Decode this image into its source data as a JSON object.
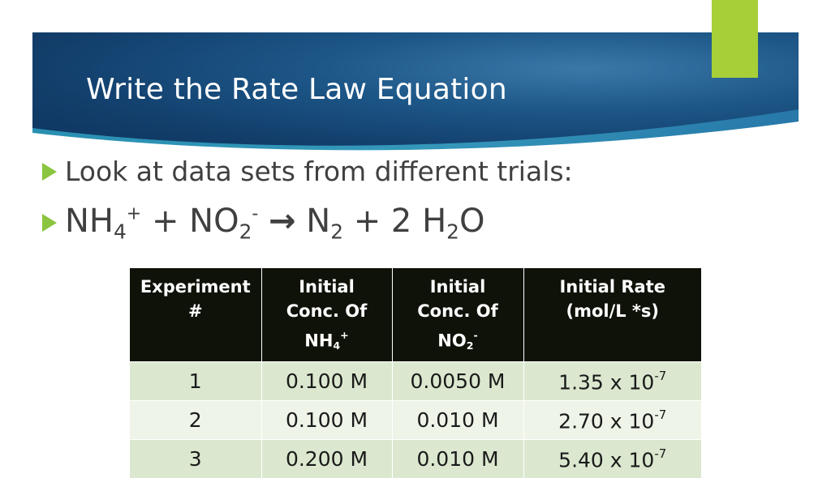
{
  "slide": {
    "title": "Write the Rate Law Equation",
    "accent_color": "#a6cf38",
    "banner_color": "#1c5687",
    "bullet_color": "#8bc53f"
  },
  "bullets": [
    {
      "text": "Look at data sets from different trials:"
    },
    {
      "equation": {
        "r1": "NH",
        "r1_sub": "4",
        "r1_sup": "+",
        "plus1": "+",
        "r2": "NO",
        "r2_sub": "2",
        "r2_sup": "-",
        "arrow": "→",
        "p1": "N",
        "p1_sub": "2",
        "plus2": "+ 2",
        "p2a": "H",
        "p2_sub": "2",
        "p2b": "O"
      }
    }
  ],
  "table": {
    "headers": [
      {
        "text": "Experiment #"
      },
      {
        "line1": "Initial",
        "line2": "Conc. Of",
        "chem": "NH",
        "chem_sub": "4",
        "chem_sup": "+"
      },
      {
        "line1": "Initial",
        "line2": "Conc. Of",
        "chem": "NO",
        "chem_sub": "2",
        "chem_sup": "-"
      },
      {
        "line1": "Initial Rate",
        "line2": "(mol/L *s)"
      }
    ],
    "rows": [
      {
        "experiment": "1",
        "nh4": "0.100 M",
        "no2": "0.0050 M",
        "rate": "1.35 x 10",
        "rate_exp": "-7"
      },
      {
        "experiment": "2",
        "nh4": "0.100 M",
        "no2": "0.010 M",
        "rate": "2.70 x 10",
        "rate_exp": "-7"
      },
      {
        "experiment": "3",
        "nh4": "0.200 M",
        "no2": "0.010 M",
        "rate": "5.40 x 10",
        "rate_exp": "-7"
      }
    ]
  }
}
